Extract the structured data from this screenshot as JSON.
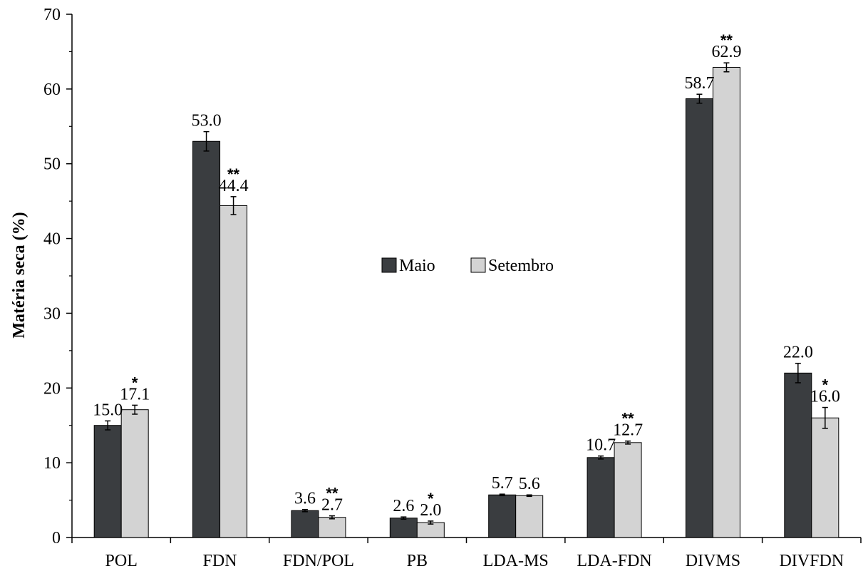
{
  "colors": {
    "maio": "#3a3d40",
    "setembro": "#d3d3d3",
    "axis": "#000000",
    "bar_stroke": "#000000"
  },
  "chart_data": {
    "type": "bar",
    "ylabel": "Matéria seca (%)",
    "xlabel": "",
    "ylim": [
      0,
      70
    ],
    "yticks": [
      0,
      10,
      20,
      30,
      40,
      50,
      60,
      70
    ],
    "grid": false,
    "legend_position": "center",
    "categories": [
      "POL",
      "FDN",
      "FDN/POL",
      "PB",
      "LDA-MS",
      "LDA-FDN",
      "DIVMS",
      "DIVFDN"
    ],
    "series": [
      {
        "name": "Maio",
        "values": [
          15.0,
          53.0,
          3.6,
          2.6,
          5.7,
          10.7,
          58.7,
          22.0
        ],
        "labels": [
          "15.0",
          "53.0",
          "3.6",
          "2.6",
          "5.7",
          "10.7",
          "58.7",
          "22.0"
        ],
        "errors": [
          0.6,
          1.3,
          0.15,
          0.15,
          0.1,
          0.2,
          0.6,
          1.3
        ]
      },
      {
        "name": "Setembro",
        "values": [
          17.1,
          44.4,
          2.7,
          2.0,
          5.6,
          12.7,
          62.9,
          16.0
        ],
        "labels": [
          "17.1",
          "44.4",
          "2.7",
          "2.0",
          "5.6",
          "12.7",
          "62.9",
          "16.0"
        ],
        "errors": [
          0.6,
          1.2,
          0.2,
          0.2,
          0.1,
          0.2,
          0.6,
          1.4
        ]
      }
    ],
    "significance": [
      "*",
      "**",
      "**",
      "*",
      "",
      "**",
      "**",
      "*"
    ]
  }
}
